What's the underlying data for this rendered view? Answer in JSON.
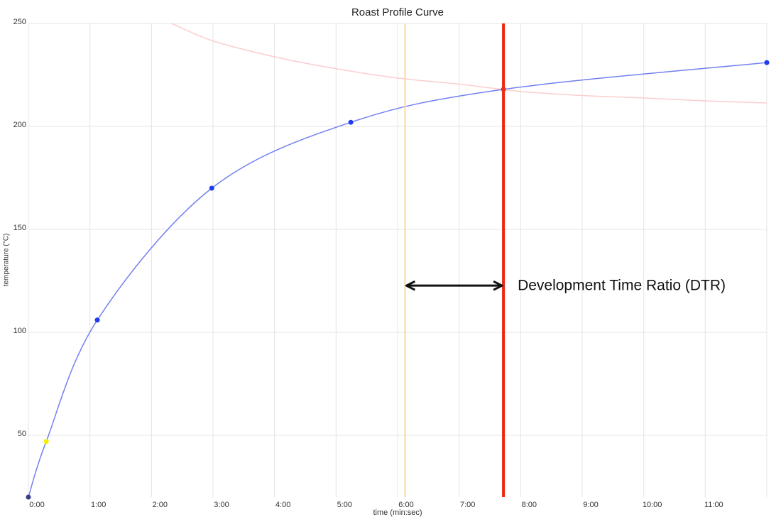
{
  "chart_data": {
    "type": "line",
    "title": "Roast Profile Curve",
    "x_label": "time (min:sec)",
    "y_label": "temperature (°C)",
    "xlim": [
      0,
      12
    ],
    "ylim": [
      20,
      250
    ],
    "xticks": [
      {
        "value": 0,
        "label": "0:00"
      },
      {
        "value": 1,
        "label": "1:00"
      },
      {
        "value": 2,
        "label": "2:00"
      },
      {
        "value": 3,
        "label": "3:00"
      },
      {
        "value": 4,
        "label": "4:00"
      },
      {
        "value": 5,
        "label": "5:00"
      },
      {
        "value": 6,
        "label": "6:00"
      },
      {
        "value": 7,
        "label": "7:00"
      },
      {
        "value": 8,
        "label": "8:00"
      },
      {
        "value": 9,
        "label": "9:00"
      },
      {
        "value": 10,
        "label": "10:00"
      },
      {
        "value": 11,
        "label": "11:00"
      }
    ],
    "yticks": [
      50,
      100,
      150,
      200,
      250
    ],
    "grid": true,
    "series": [
      {
        "color": "#7180f0",
        "markers": true,
        "x": [
          0,
          0.29,
          1.12,
          2.98,
          5.24,
          7.72,
          12
        ],
        "values": [
          20,
          47,
          106,
          170,
          202,
          218,
          231
        ],
        "marker_colors": [
          "#3a3a8a",
          "#f2f000",
          "#1f3cf0",
          "#1f3cf0",
          "#1f3cf0",
          "#e8301c",
          "#1f3cf0"
        ]
      },
      {
        "color": "#fbcdd0",
        "markers": false,
        "x": [
          2.33,
          3,
          4,
          5,
          6,
          7,
          8,
          9,
          10,
          11,
          12
        ],
        "values": [
          250,
          241.5,
          233.8,
          228,
          223.5,
          220.5,
          217,
          215,
          213.8,
          212.4,
          211.4
        ]
      }
    ],
    "vlines": [
      {
        "x": 6.12,
        "color": "#f7d9a0",
        "width": 2
      },
      {
        "x": 7.72,
        "color": "#ea2a14",
        "width": 4
      }
    ],
    "annotation": {
      "text": "Development Time Ratio (DTR)",
      "y": 122.7
    }
  }
}
